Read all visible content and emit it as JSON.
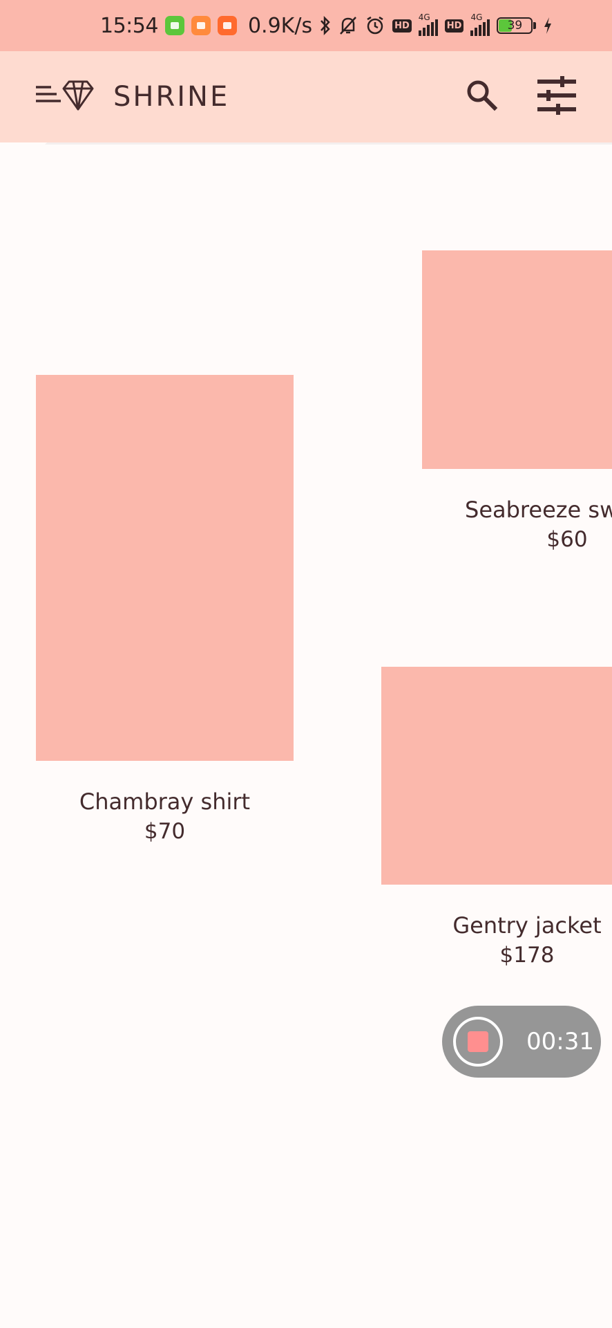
{
  "status_bar": {
    "time": "15:54",
    "net_speed": "0.9K/s",
    "hd_label": "HD",
    "network_label": "4G",
    "battery_level": "39",
    "battery_fraction": 0.39
  },
  "app_bar": {
    "title": "SHRINE",
    "menu_icon": "menu-icon",
    "brand_icon": "diamond-icon",
    "search_icon": "search-icon",
    "filter_icon": "tune-icon"
  },
  "products": [
    {
      "name": "Chambray shirt",
      "price": "$70"
    },
    {
      "name": "Seabreeze sw",
      "price": "$60"
    },
    {
      "name": "Gentry jacket",
      "price": "$178"
    }
  ],
  "recording": {
    "elapsed": "00:31",
    "stop_icon": "stop-icon"
  },
  "colors": {
    "status_bar": "#FBB8AC",
    "app_bar": "#FEDBD0",
    "background": "#FFFBFA",
    "product_placeholder": "#FBB8AC",
    "text": "#442B2D",
    "recording_pill": "#969696",
    "recording_stop": "#FF8F8F"
  }
}
